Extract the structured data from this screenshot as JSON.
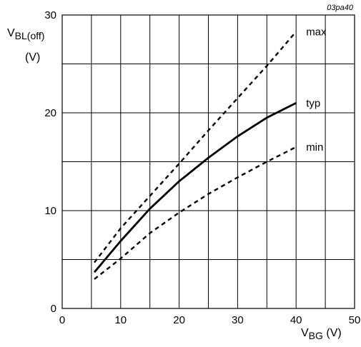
{
  "chart_data": {
    "type": "line",
    "figure_code": "03pa40",
    "y_axis": {
      "symbol": "V",
      "subscript": "BL(off)",
      "unit": "(V)",
      "range": [
        0,
        30
      ],
      "ticks": [
        "0",
        "10",
        "20",
        "30"
      ]
    },
    "x_axis": {
      "symbol": "V",
      "subscript": "BG",
      "unit": "(V)",
      "range": [
        0,
        50
      ],
      "ticks": [
        "0",
        "10",
        "20",
        "30",
        "40",
        "50"
      ]
    },
    "grid": true,
    "series": [
      {
        "name": "max",
        "style": "dashed",
        "x": [
          5.5,
          10,
          15,
          20,
          25,
          30,
          35,
          40
        ],
        "y": [
          4.7,
          8.2,
          11.5,
          14.8,
          18.2,
          21.5,
          24.8,
          28.3
        ]
      },
      {
        "name": "typ",
        "style": "solid",
        "x": [
          5.5,
          10,
          15,
          20,
          25,
          30,
          35,
          40
        ],
        "y": [
          3.7,
          6.9,
          10.2,
          13.0,
          15.4,
          17.6,
          19.5,
          21.0
        ]
      },
      {
        "name": "min",
        "style": "dashed",
        "x": [
          5.5,
          10,
          15,
          20,
          25,
          30,
          35,
          40
        ],
        "y": [
          3.0,
          5.1,
          7.7,
          9.8,
          11.7,
          13.4,
          15.0,
          16.5
        ]
      }
    ]
  }
}
